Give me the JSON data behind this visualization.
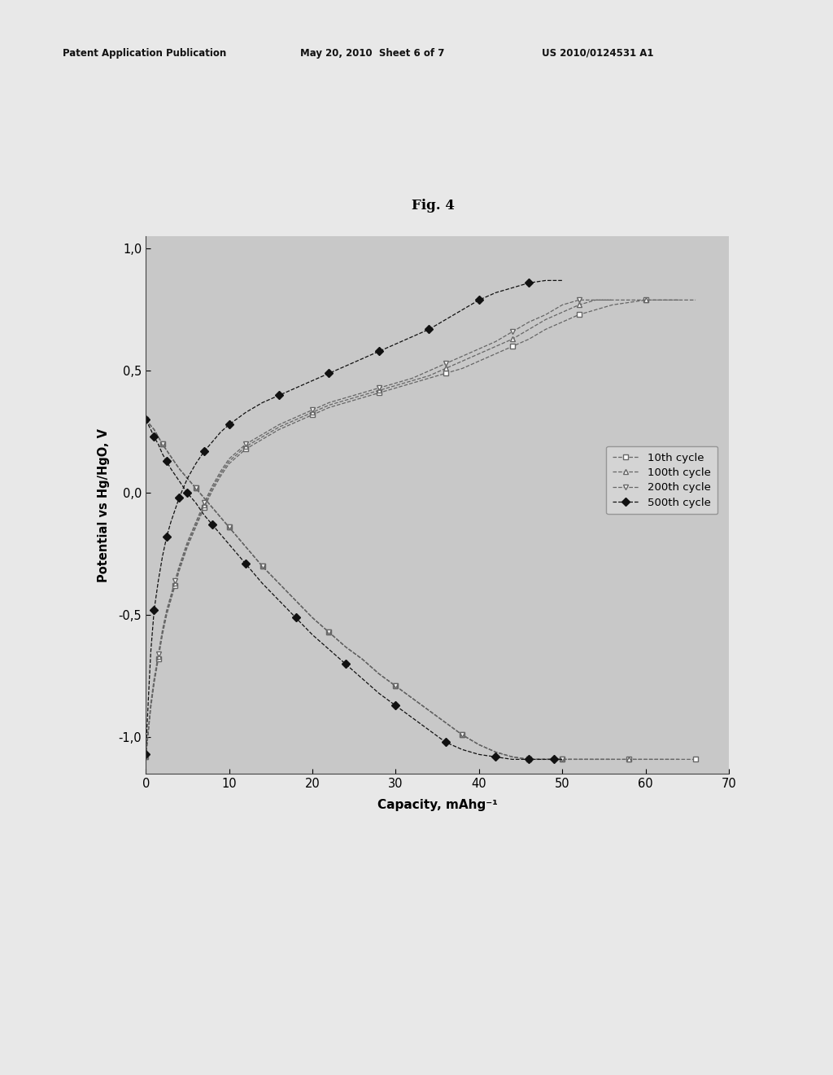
{
  "title": "Fig. 4",
  "xlabel": "Capacity, mAhg⁻¹",
  "ylabel": "Potential vs Hg/HgO, V",
  "xlim": [
    0,
    70
  ],
  "ylim": [
    -1.15,
    1.05
  ],
  "xticks": [
    0,
    10,
    20,
    30,
    40,
    50,
    60,
    70
  ],
  "yticks": [
    -1.0,
    -0.5,
    0.0,
    0.5,
    1.0
  ],
  "ytick_labels": [
    "-1,0",
    "-0,5",
    "0,0",
    "0,5",
    "1,0"
  ],
  "header_left": "Patent Application Publication",
  "header_center": "May 20, 2010  Sheet 6 of 7",
  "header_right": "US 2010/0124531 A1",
  "plot_bg": "#c8c8c8",
  "fig_bg": "#e8e8e8",
  "legend_labels": [
    "10th cycle",
    "100th cycle",
    "200th cycle",
    "500th cycle"
  ],
  "charge_curves": {
    "cycle10": {
      "x": [
        0.0,
        0.3,
        0.6,
        1.0,
        1.5,
        2.0,
        2.5,
        3.0,
        3.5,
        4.0,
        5.0,
        6.0,
        7.0,
        8.0,
        9.0,
        10.0,
        12.0,
        14.0,
        16.0,
        18.0,
        20.0,
        22.0,
        24.0,
        26.0,
        28.0,
        30.0,
        32.0,
        34.0,
        36.0,
        38.0,
        40.0,
        42.0,
        44.0,
        46.0,
        48.0,
        50.0,
        52.0,
        54.0,
        56.0,
        58.0,
        60.0,
        62.0,
        64.0,
        66.0
      ],
      "y": [
        -1.08,
        -0.98,
        -0.88,
        -0.78,
        -0.68,
        -0.58,
        -0.5,
        -0.44,
        -0.38,
        -0.32,
        -0.22,
        -0.14,
        -0.06,
        0.01,
        0.07,
        0.12,
        0.18,
        0.22,
        0.26,
        0.29,
        0.32,
        0.35,
        0.37,
        0.39,
        0.41,
        0.43,
        0.45,
        0.47,
        0.49,
        0.51,
        0.54,
        0.57,
        0.6,
        0.63,
        0.67,
        0.7,
        0.73,
        0.75,
        0.77,
        0.78,
        0.79,
        0.79,
        0.79,
        0.79
      ]
    },
    "cycle100": {
      "x": [
        0.0,
        0.3,
        0.6,
        1.0,
        1.5,
        2.0,
        2.5,
        3.0,
        3.5,
        4.0,
        5.0,
        6.0,
        7.0,
        8.0,
        9.0,
        10.0,
        12.0,
        14.0,
        16.0,
        18.0,
        20.0,
        22.0,
        24.0,
        26.0,
        28.0,
        30.0,
        32.0,
        34.0,
        36.0,
        38.0,
        40.0,
        42.0,
        44.0,
        46.0,
        48.0,
        50.0,
        52.0,
        54.0,
        56.0,
        58.0,
        60.0,
        62.0,
        64.0
      ],
      "y": [
        -1.08,
        -0.98,
        -0.87,
        -0.77,
        -0.67,
        -0.57,
        -0.49,
        -0.43,
        -0.37,
        -0.31,
        -0.21,
        -0.13,
        -0.05,
        0.02,
        0.08,
        0.13,
        0.19,
        0.23,
        0.27,
        0.3,
        0.33,
        0.36,
        0.38,
        0.4,
        0.42,
        0.44,
        0.46,
        0.48,
        0.51,
        0.54,
        0.57,
        0.6,
        0.63,
        0.67,
        0.71,
        0.74,
        0.77,
        0.79,
        0.79,
        0.79,
        0.79,
        0.79,
        0.79
      ]
    },
    "cycle200": {
      "x": [
        0.0,
        0.3,
        0.6,
        1.0,
        1.5,
        2.0,
        2.5,
        3.0,
        3.5,
        4.0,
        5.0,
        6.0,
        7.0,
        8.0,
        9.0,
        10.0,
        12.0,
        14.0,
        16.0,
        18.0,
        20.0,
        22.0,
        24.0,
        26.0,
        28.0,
        30.0,
        32.0,
        34.0,
        36.0,
        38.0,
        40.0,
        42.0,
        44.0,
        46.0,
        48.0,
        50.0,
        52.0,
        54.0,
        56.0
      ],
      "y": [
        -1.08,
        -0.97,
        -0.86,
        -0.76,
        -0.66,
        -0.56,
        -0.48,
        -0.42,
        -0.36,
        -0.3,
        -0.2,
        -0.12,
        -0.04,
        0.03,
        0.09,
        0.14,
        0.2,
        0.24,
        0.28,
        0.31,
        0.34,
        0.37,
        0.39,
        0.41,
        0.43,
        0.45,
        0.47,
        0.5,
        0.53,
        0.56,
        0.59,
        0.62,
        0.66,
        0.7,
        0.73,
        0.77,
        0.79,
        0.79,
        0.79
      ]
    },
    "cycle500": {
      "x": [
        0.0,
        0.3,
        0.6,
        1.0,
        1.5,
        2.0,
        2.5,
        3.0,
        3.5,
        4.0,
        5.0,
        6.0,
        7.0,
        8.0,
        9.0,
        10.0,
        12.0,
        14.0,
        16.0,
        18.0,
        20.0,
        22.0,
        24.0,
        26.0,
        28.0,
        30.0,
        32.0,
        34.0,
        36.0,
        38.0,
        40.0,
        42.0,
        44.0,
        46.0,
        48.0,
        50.0
      ],
      "y": [
        -1.07,
        -0.85,
        -0.65,
        -0.48,
        -0.36,
        -0.26,
        -0.18,
        -0.12,
        -0.07,
        -0.02,
        0.06,
        0.12,
        0.17,
        0.21,
        0.25,
        0.28,
        0.33,
        0.37,
        0.4,
        0.43,
        0.46,
        0.49,
        0.52,
        0.55,
        0.58,
        0.61,
        0.64,
        0.67,
        0.71,
        0.75,
        0.79,
        0.82,
        0.84,
        0.86,
        0.87,
        0.87
      ]
    }
  },
  "discharge_curves": {
    "cycle10": {
      "x": [
        0.0,
        0.5,
        1.0,
        1.5,
        2.0,
        3.0,
        4.0,
        5.0,
        6.0,
        7.0,
        8.0,
        9.0,
        10.0,
        11.0,
        12.0,
        13.0,
        14.0,
        16.0,
        18.0,
        20.0,
        22.0,
        24.0,
        26.0,
        28.0,
        30.0,
        32.0,
        34.0,
        36.0,
        38.0,
        40.0,
        42.0,
        44.0,
        46.0,
        47.0,
        48.0,
        49.0,
        50.0,
        52.0,
        54.0,
        56.0,
        58.0,
        60.0,
        62.0,
        64.0,
        66.0
      ],
      "y": [
        0.3,
        0.28,
        0.26,
        0.23,
        0.2,
        0.15,
        0.1,
        0.06,
        0.02,
        -0.02,
        -0.06,
        -0.1,
        -0.14,
        -0.18,
        -0.22,
        -0.26,
        -0.3,
        -0.37,
        -0.44,
        -0.51,
        -0.57,
        -0.63,
        -0.68,
        -0.74,
        -0.79,
        -0.84,
        -0.89,
        -0.94,
        -0.99,
        -1.03,
        -1.06,
        -1.08,
        -1.09,
        -1.09,
        -1.09,
        -1.09,
        -1.09,
        -1.09,
        -1.09,
        -1.09,
        -1.09,
        -1.09,
        -1.09,
        -1.09,
        -1.09
      ]
    },
    "cycle100": {
      "x": [
        0.0,
        0.5,
        1.0,
        1.5,
        2.0,
        3.0,
        4.0,
        5.0,
        6.0,
        7.0,
        8.0,
        9.0,
        10.0,
        11.0,
        12.0,
        13.0,
        14.0,
        16.0,
        18.0,
        20.0,
        22.0,
        24.0,
        26.0,
        28.0,
        30.0,
        32.0,
        34.0,
        36.0,
        38.0,
        40.0,
        42.0,
        44.0,
        46.0,
        47.0,
        48.0,
        49.0,
        50.0,
        52.0,
        54.0,
        56.0,
        58.0,
        60.0,
        62.0,
        64.0
      ],
      "y": [
        0.3,
        0.28,
        0.26,
        0.23,
        0.2,
        0.15,
        0.1,
        0.06,
        0.02,
        -0.02,
        -0.06,
        -0.1,
        -0.14,
        -0.18,
        -0.22,
        -0.26,
        -0.3,
        -0.37,
        -0.44,
        -0.51,
        -0.57,
        -0.63,
        -0.68,
        -0.74,
        -0.79,
        -0.84,
        -0.89,
        -0.94,
        -0.99,
        -1.03,
        -1.06,
        -1.08,
        -1.09,
        -1.09,
        -1.09,
        -1.09,
        -1.09,
        -1.09,
        -1.09,
        -1.09,
        -1.09,
        -1.09,
        -1.09,
        -1.09
      ]
    },
    "cycle200": {
      "x": [
        0.0,
        0.5,
        1.0,
        1.5,
        2.0,
        3.0,
        4.0,
        5.0,
        6.0,
        7.0,
        8.0,
        9.0,
        10.0,
        11.0,
        12.0,
        13.0,
        14.0,
        16.0,
        18.0,
        20.0,
        22.0,
        24.0,
        26.0,
        28.0,
        30.0,
        32.0,
        34.0,
        36.0,
        38.0,
        40.0,
        42.0,
        44.0,
        46.0,
        47.0,
        48.0,
        49.0,
        50.0,
        52.0,
        54.0,
        56.0
      ],
      "y": [
        0.3,
        0.28,
        0.26,
        0.23,
        0.2,
        0.15,
        0.1,
        0.06,
        0.02,
        -0.02,
        -0.06,
        -0.1,
        -0.14,
        -0.18,
        -0.22,
        -0.26,
        -0.3,
        -0.37,
        -0.44,
        -0.51,
        -0.57,
        -0.63,
        -0.68,
        -0.74,
        -0.79,
        -0.84,
        -0.89,
        -0.94,
        -0.99,
        -1.03,
        -1.06,
        -1.08,
        -1.09,
        -1.09,
        -1.09,
        -1.09,
        -1.09,
        -1.09,
        -1.09,
        -1.09
      ]
    },
    "cycle500": {
      "x": [
        0.0,
        0.3,
        0.6,
        1.0,
        1.5,
        2.0,
        2.5,
        3.0,
        4.0,
        5.0,
        6.0,
        7.0,
        8.0,
        9.0,
        10.0,
        12.0,
        14.0,
        16.0,
        18.0,
        20.0,
        22.0,
        24.0,
        26.0,
        28.0,
        30.0,
        32.0,
        34.0,
        36.0,
        38.0,
        40.0,
        42.0,
        44.0,
        45.0,
        46.0,
        47.0,
        48.0,
        49.0,
        50.0
      ],
      "y": [
        0.3,
        0.28,
        0.26,
        0.23,
        0.2,
        0.16,
        0.13,
        0.1,
        0.05,
        0.0,
        -0.04,
        -0.09,
        -0.13,
        -0.17,
        -0.21,
        -0.29,
        -0.37,
        -0.44,
        -0.51,
        -0.58,
        -0.64,
        -0.7,
        -0.76,
        -0.82,
        -0.87,
        -0.92,
        -0.97,
        -1.02,
        -1.05,
        -1.07,
        -1.08,
        -1.09,
        -1.09,
        -1.09,
        -1.09,
        -1.09,
        -1.09,
        -1.09
      ]
    }
  }
}
